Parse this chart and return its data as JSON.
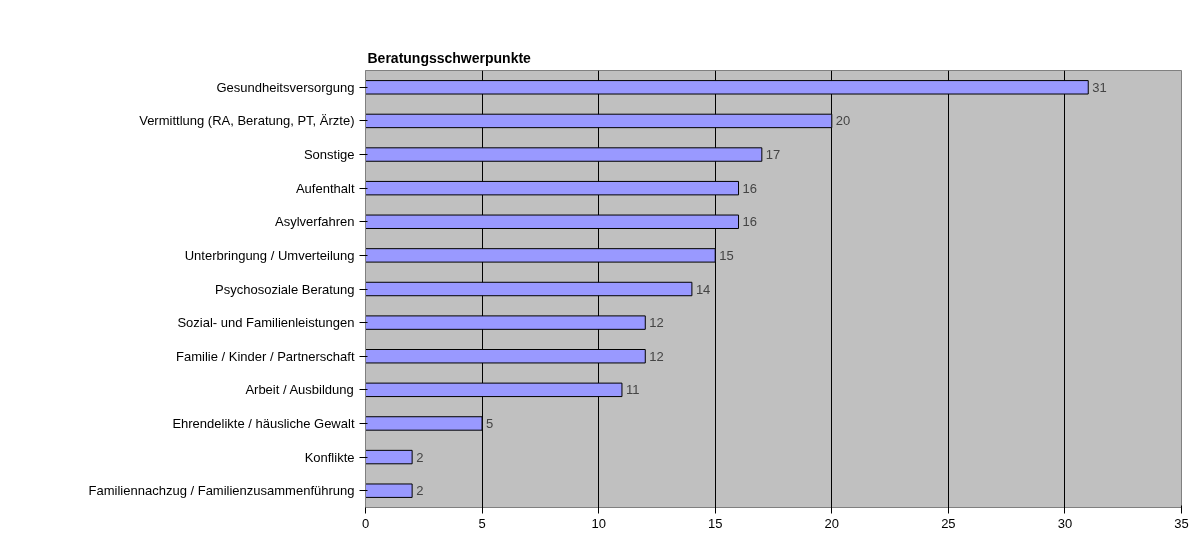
{
  "chart_data": {
    "type": "bar",
    "orientation": "horizontal",
    "title": "Beratungsschwerpunkte",
    "categories": [
      "Gesundheitsversorgung",
      "Vermittlung (RA, Beratung, PT, Ärzte)",
      "Sonstige",
      "Aufenthalt",
      "Asylverfahren",
      "Unterbringung / Umverteilung",
      "Psychosoziale Beratung",
      "Sozial- und Familienleistungen",
      "Familie / Kinder / Partnerschaft",
      "Arbeit / Ausbildung",
      "Ehrendelikte / häusliche Gewalt",
      "Konflikte",
      "Familiennachzug / Familienzusammenführung"
    ],
    "values": [
      31,
      20,
      17,
      16,
      16,
      15,
      14,
      12,
      12,
      11,
      5,
      2,
      2
    ],
    "color": "#9999ff",
    "xlim": [
      0,
      35
    ],
    "xticks": [
      0,
      5,
      10,
      15,
      20,
      25,
      30,
      35
    ],
    "grid": "x",
    "data_labels": true
  }
}
